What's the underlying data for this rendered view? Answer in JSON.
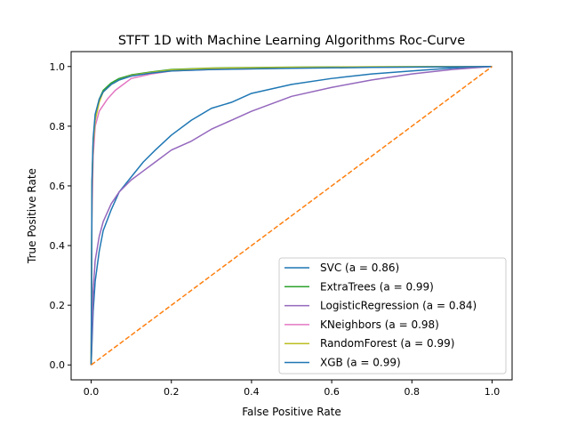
{
  "chart_data": {
    "type": "line",
    "title": "STFT 1D with Machine Learning Algorithms Roc-Curve",
    "xlabel": "False Positive Rate",
    "ylabel": "True Positive Rate",
    "xlim": [
      -0.05,
      1.05
    ],
    "ylim": [
      -0.05,
      1.05
    ],
    "xticks": [
      "0.0",
      "0.2",
      "0.4",
      "0.6",
      "0.8",
      "1.0"
    ],
    "yticks": [
      "0.0",
      "0.2",
      "0.4",
      "0.6",
      "0.8",
      "1.0"
    ],
    "grid": false,
    "legend_position": "lower-right",
    "series": [
      {
        "name": "SVC (a = 0.86)",
        "color": "#1f77b4",
        "x": [
          0,
          0.005,
          0.01,
          0.02,
          0.03,
          0.05,
          0.07,
          0.1,
          0.13,
          0.16,
          0.2,
          0.25,
          0.3,
          0.35,
          0.4,
          0.5,
          0.6,
          0.7,
          0.8,
          0.9,
          1.0
        ],
        "y": [
          0,
          0.18,
          0.28,
          0.38,
          0.45,
          0.52,
          0.58,
          0.63,
          0.68,
          0.72,
          0.77,
          0.82,
          0.86,
          0.88,
          0.91,
          0.94,
          0.96,
          0.975,
          0.985,
          0.995,
          1.0
        ]
      },
      {
        "name": "ExtraTrees (a = 0.99)",
        "color": "#2ca02c",
        "x": [
          0,
          0.002,
          0.005,
          0.01,
          0.02,
          0.03,
          0.05,
          0.07,
          0.1,
          0.15,
          0.2,
          0.3,
          0.5,
          0.7,
          1.0
        ],
        "y": [
          0,
          0.6,
          0.75,
          0.83,
          0.89,
          0.92,
          0.945,
          0.96,
          0.972,
          0.982,
          0.99,
          0.995,
          0.998,
          0.999,
          1.0
        ]
      },
      {
        "name": "LogisticRegression (a = 0.84)",
        "color": "#9467bd",
        "x": [
          0,
          0.005,
          0.01,
          0.02,
          0.03,
          0.05,
          0.07,
          0.1,
          0.13,
          0.16,
          0.2,
          0.25,
          0.3,
          0.35,
          0.4,
          0.5,
          0.6,
          0.7,
          0.8,
          0.9,
          1.0
        ],
        "y": [
          0,
          0.25,
          0.35,
          0.43,
          0.48,
          0.54,
          0.58,
          0.62,
          0.65,
          0.68,
          0.72,
          0.75,
          0.79,
          0.82,
          0.85,
          0.9,
          0.93,
          0.955,
          0.975,
          0.99,
          1.0
        ]
      },
      {
        "name": "KNeighbors (a = 0.98)",
        "color": "#e377c2",
        "x": [
          0,
          0.002,
          0.005,
          0.01,
          0.02,
          0.04,
          0.06,
          0.08,
          0.1,
          0.15,
          0.2,
          0.3,
          0.5,
          0.7,
          1.0
        ],
        "y": [
          0,
          0.5,
          0.7,
          0.8,
          0.85,
          0.89,
          0.92,
          0.94,
          0.96,
          0.975,
          0.985,
          0.99,
          0.995,
          0.998,
          1.0
        ]
      },
      {
        "name": "RandomForest (a = 0.99)",
        "color": "#bcbd22",
        "x": [
          0,
          0.002,
          0.005,
          0.01,
          0.02,
          0.03,
          0.05,
          0.07,
          0.1,
          0.15,
          0.2,
          0.3,
          0.5,
          0.7,
          1.0
        ],
        "y": [
          0,
          0.6,
          0.74,
          0.82,
          0.88,
          0.915,
          0.94,
          0.955,
          0.97,
          0.98,
          0.988,
          0.994,
          0.997,
          0.999,
          1.0
        ]
      },
      {
        "name": "XGB (a = 0.99)",
        "color": "#1f77b4",
        "x": [
          0,
          0.002,
          0.005,
          0.01,
          0.02,
          0.03,
          0.05,
          0.07,
          0.1,
          0.15,
          0.2,
          0.3,
          0.5,
          0.7,
          1.0
        ],
        "y": [
          0,
          0.62,
          0.76,
          0.84,
          0.89,
          0.915,
          0.94,
          0.955,
          0.968,
          0.978,
          0.985,
          0.99,
          0.994,
          0.997,
          1.0
        ]
      }
    ],
    "reference_line": {
      "color": "#ff7f0e",
      "dash": "dashed",
      "x": [
        0,
        1
      ],
      "y": [
        0,
        1
      ]
    }
  }
}
